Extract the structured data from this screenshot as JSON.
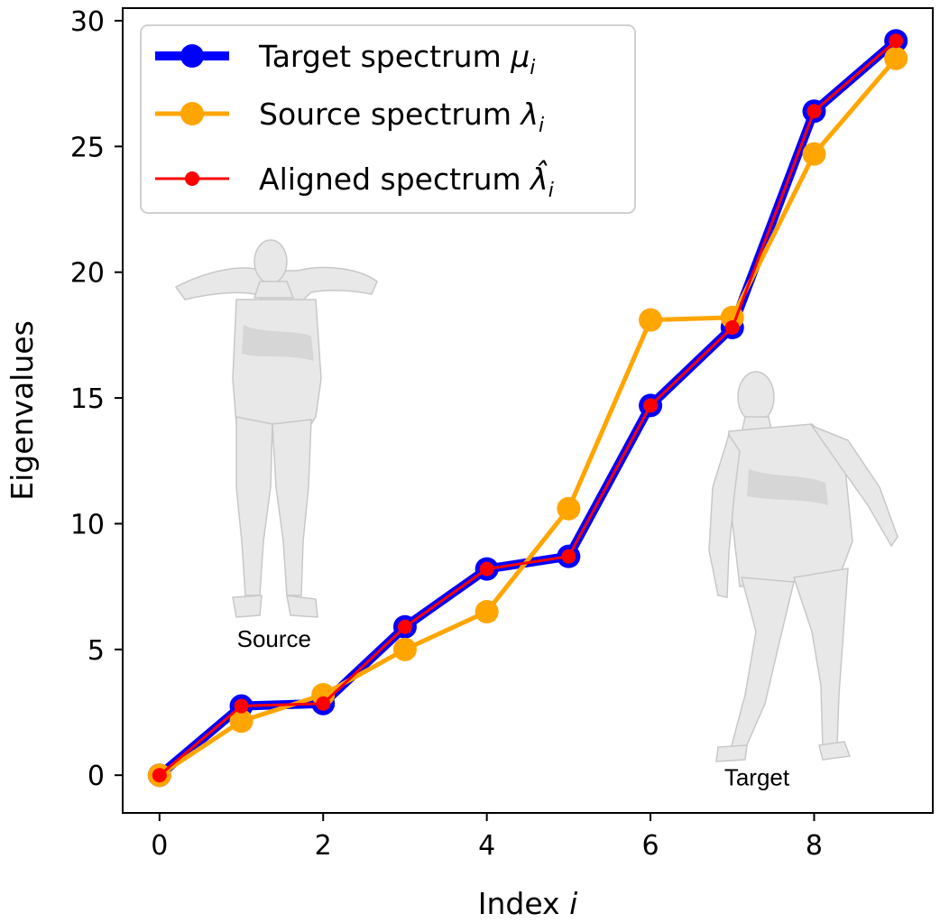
{
  "chart_data": {
    "type": "line",
    "title": "",
    "xlabel": "Index i",
    "xlabel_text": "Index",
    "xlabel_var": "i",
    "ylabel": "Eigenvalues",
    "xlim": [
      -0.45,
      9.45
    ],
    "ylim": [
      -1.5,
      30.5
    ],
    "x": [
      0,
      1,
      2,
      3,
      4,
      5,
      6,
      7,
      8,
      9
    ],
    "xticks": [
      0,
      2,
      4,
      6,
      8
    ],
    "yticks": [
      0,
      5,
      10,
      15,
      20,
      25,
      30
    ],
    "grid": false,
    "legend_position": "top-left",
    "series": [
      {
        "name": "Target spectrum μi",
        "label_text": "Target spectrum",
        "label_var": "μ",
        "label_sub": "i",
        "color": "#0000ff",
        "style": "thick",
        "values": [
          0.0,
          2.75,
          2.85,
          5.9,
          8.2,
          8.7,
          14.7,
          17.8,
          26.4,
          29.2
        ]
      },
      {
        "name": "Source spectrum λi",
        "label_text": "Source spectrum",
        "label_var": "λ",
        "label_sub": "i",
        "color": "#ffa500",
        "style": "medium",
        "values": [
          0.0,
          2.15,
          3.2,
          5.0,
          6.5,
          10.6,
          18.1,
          18.2,
          24.7,
          28.5
        ]
      },
      {
        "name": "Aligned spectrum λ̂i",
        "label_text": "Aligned spectrum",
        "label_var": "λ̂",
        "label_sub": "i",
        "color": "#ff0000",
        "style": "thin",
        "values": [
          0.0,
          2.75,
          2.85,
          5.9,
          8.2,
          8.7,
          14.7,
          17.8,
          26.4,
          29.2
        ]
      }
    ],
    "annotations": [
      {
        "text": "Source",
        "x": 1.4,
        "y": 5.1
      },
      {
        "text": "Target",
        "x": 7.3,
        "y": -0.4
      }
    ]
  }
}
